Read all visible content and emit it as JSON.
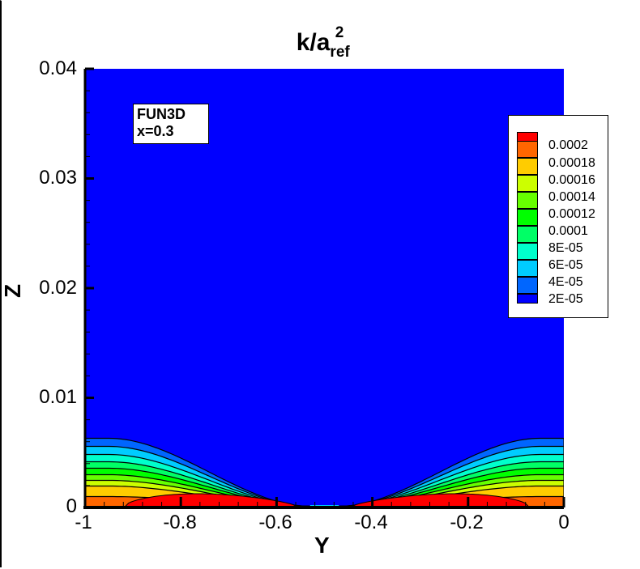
{
  "chart_data": {
    "type": "heatmap",
    "subtype": "filled-contour",
    "title": "k/a_ref^2",
    "title_parts": {
      "main": "k/a",
      "subscript": "ref",
      "superscript": "2"
    },
    "xlabel": "Y",
    "ylabel": "Z",
    "xlim": [
      -1,
      0
    ],
    "ylim": [
      0,
      0.04
    ],
    "x_ticks": [
      "-1",
      "-0.8",
      "-0.6",
      "-0.4",
      "-0.2",
      "0"
    ],
    "y_ticks": [
      "0",
      "0.01",
      "0.02",
      "0.03",
      "0.04"
    ],
    "grid": false,
    "annotation": {
      "line1": "FUN3D",
      "line2": "x=0.3"
    },
    "legend": {
      "position": "upper-right",
      "levels": [
        {
          "label": "0.0002",
          "value": 0.0002,
          "color": "#ff0000"
        },
        {
          "label": "0.00018",
          "value": 0.00018,
          "color": "#ff6600"
        },
        {
          "label": "0.00016",
          "value": 0.00016,
          "color": "#ffcc00"
        },
        {
          "label": "0.00014",
          "value": 0.00014,
          "color": "#ccff00"
        },
        {
          "label": "0.00012",
          "value": 0.00012,
          "color": "#66ff00"
        },
        {
          "label": "0.0001",
          "value": 0.0001,
          "color": "#00ff00"
        },
        {
          "label": "8E-05",
          "value": 8e-05,
          "color": "#00ff66"
        },
        {
          "label": "6E-05",
          "value": 6e-05,
          "color": "#00ffcc"
        },
        {
          "label": "4E-05",
          "value": 4e-05,
          "color": "#00ccff"
        },
        {
          "label": "2E-05",
          "value": 2e-05,
          "color": "#0066ff"
        },
        {
          "label": "",
          "value": 0,
          "color": "#0000ff"
        }
      ]
    },
    "background_color": "#0000ff",
    "description": "Turbulent kinetic energy contours in a thin near-wall layer (Z < ~0.0065) at both ends of the span, thinning to zero near Y = -0.5; max (red) region near the wall at Y ≈ -0.9 to -0.6 and Y ≈ -0.4 to -0.1."
  },
  "axes": {
    "x_ticks": [
      "-1",
      "-0.8",
      "-0.6",
      "-0.4",
      "-0.2",
      "0"
    ],
    "y_ticks": [
      "0",
      "0.01",
      "0.02",
      "0.03",
      "0.04"
    ],
    "xlabel": "Y",
    "ylabel": "Z"
  },
  "title": {
    "main": "k/a",
    "subscript": "ref",
    "superscript": "2"
  },
  "annotation": {
    "line1": "FUN3D",
    "line2": "x=0.3"
  },
  "legend": {
    "labels": [
      "0.0002",
      "0.00018",
      "0.00016",
      "0.00014",
      "0.00012",
      "0.0001",
      "8E-05",
      "6E-05",
      "4E-05",
      "2E-05"
    ],
    "colors": [
      "#ff0000",
      "#ff6600",
      "#ffcc00",
      "#ccff00",
      "#66ff00",
      "#00ff00",
      "#00ff66",
      "#00ffcc",
      "#00ccff",
      "#0066ff",
      "#0000ff"
    ]
  }
}
